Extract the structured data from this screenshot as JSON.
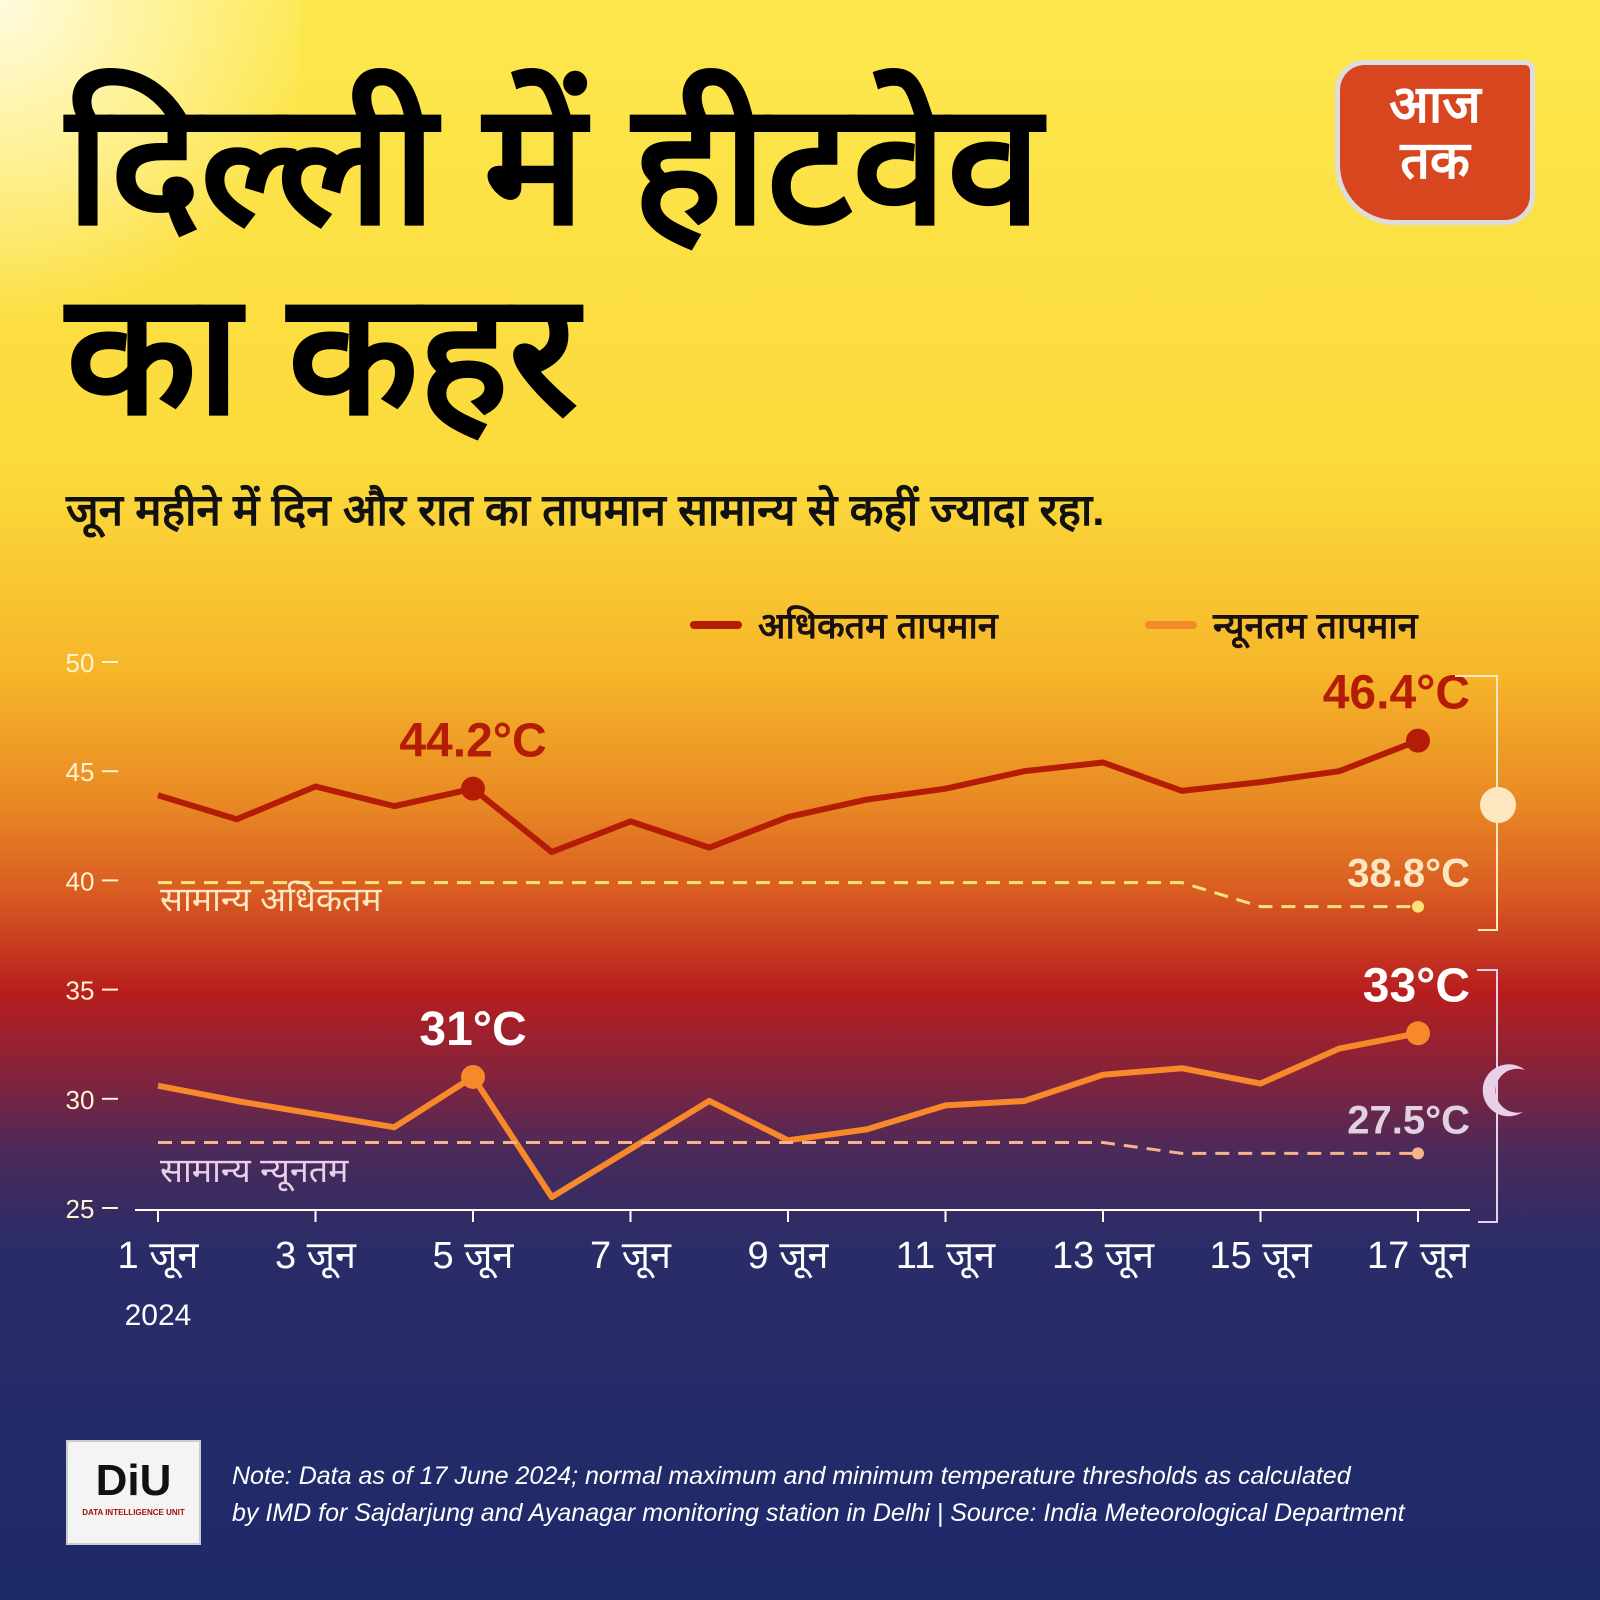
{
  "header": {
    "title_line1": "दिल्ली में हीटवेव",
    "title_line2": "का कहर",
    "subtitle": "जून महीने में दिन और रात का तापमान सामान्य से कहीं ज्यादा रहा.",
    "logo_text_1": "आज",
    "logo_text_2": "तक"
  },
  "colors": {
    "max": "#b51c05",
    "min": "#f7892a",
    "normal_max": "#fbe27a",
    "normal_min": "#f7b48a"
  },
  "chart_data": {
    "type": "line",
    "title": "दिल्ली में हीटवेव का कहर",
    "x": [
      1,
      2,
      3,
      4,
      5,
      6,
      7,
      8,
      9,
      10,
      11,
      12,
      13,
      14,
      15,
      16,
      17
    ],
    "xtick_labels": [
      "1 जून",
      "3 जून",
      "5 जून",
      "7 जून",
      "9 जून",
      "11 जून",
      "13 जून",
      "15 जून",
      "17 जून"
    ],
    "xtick_days": [
      1,
      3,
      5,
      7,
      9,
      11,
      13,
      15,
      17
    ],
    "year_label": "2024",
    "ylim": [
      25,
      50
    ],
    "yticks": [
      "25",
      "30",
      "35",
      "40",
      "45",
      "50"
    ],
    "legend": [
      "अधिकतम तापमान",
      "न्यूनतम तापमान"
    ],
    "legend_position": "top-right",
    "series": [
      {
        "name": "अधिकतम तापमान",
        "values": [
          43.9,
          42.8,
          44.3,
          43.4,
          44.2,
          41.3,
          42.7,
          41.5,
          42.9,
          43.7,
          44.2,
          45.0,
          45.4,
          44.1,
          44.5,
          45.0,
          46.4
        ]
      },
      {
        "name": "न्यूनतम तापमान",
        "values": [
          30.6,
          29.9,
          29.3,
          28.7,
          31.0,
          25.5,
          27.7,
          29.9,
          28.1,
          28.6,
          29.7,
          29.9,
          31.1,
          31.4,
          30.7,
          32.3,
          33.0
        ]
      },
      {
        "name": "सामान्य अधिकतम",
        "values": [
          39.9,
          39.9,
          39.9,
          39.9,
          39.9,
          39.9,
          39.9,
          39.9,
          39.9,
          39.9,
          39.9,
          39.9,
          39.9,
          39.9,
          38.8,
          38.8,
          38.8
        ]
      },
      {
        "name": "सामान्य न्यूनतम",
        "values": [
          28,
          28,
          28,
          28,
          28,
          28,
          28,
          28,
          28,
          28,
          28,
          28,
          28,
          27.5,
          27.5,
          27.5,
          27.5
        ]
      }
    ],
    "annotations": [
      {
        "text": "44.2°C",
        "day": 5,
        "series": 0
      },
      {
        "text": "46.4°C",
        "day": 17,
        "series": 0
      },
      {
        "text": "38.8°C",
        "day": 17,
        "series": 2
      },
      {
        "text": "31°C",
        "day": 5,
        "series": 1
      },
      {
        "text": "33°C",
        "day": 17,
        "series": 1
      },
      {
        "text": "27.5°C",
        "day": 17,
        "series": 3
      }
    ],
    "line_labels": [
      "सामान्य अधिकतम",
      "सामान्य न्यूनतम"
    ]
  },
  "footer": {
    "logo": "DiU",
    "logo_sub": "DATA INTELLIGENCE UNIT",
    "note_line1": "Note: Data as of 17 June 2024; normal maximum and minimum temperature thresholds as calculated",
    "note_line2": "by IMD for Sajdarjung and Ayanagar monitoring station in Delhi  |  Source: India Meteorological Department"
  }
}
